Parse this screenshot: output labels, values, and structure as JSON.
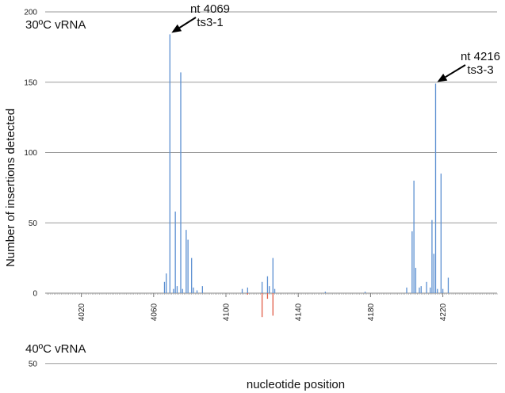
{
  "chart_data": {
    "type": "bar",
    "xlabel": "nucleotide position",
    "ylabel": "Number of insertions detected",
    "x_range": [
      4000,
      4250
    ],
    "x_ticks": [
      4020,
      4060,
      4100,
      4140,
      4180,
      4220
    ],
    "y_ticks_top": [
      0,
      50,
      100,
      150,
      200
    ],
    "y_ticks_bottom": [
      50
    ],
    "ylim_top": [
      0,
      200
    ],
    "ylim_bottom": [
      0,
      50
    ],
    "grid": true,
    "series": [
      {
        "name": "30ºC vRNA",
        "color": "#5b8fd1",
        "direction": "up",
        "points": [
          {
            "x": 4066,
            "y": 8
          },
          {
            "x": 4067,
            "y": 14
          },
          {
            "x": 4069,
            "y": 184
          },
          {
            "x": 4071,
            "y": 3
          },
          {
            "x": 4072,
            "y": 58
          },
          {
            "x": 4073,
            "y": 5
          },
          {
            "x": 4075,
            "y": 157
          },
          {
            "x": 4076,
            "y": 3
          },
          {
            "x": 4078,
            "y": 45
          },
          {
            "x": 4079,
            "y": 38
          },
          {
            "x": 4081,
            "y": 25
          },
          {
            "x": 4082,
            "y": 4
          },
          {
            "x": 4084,
            "y": 2
          },
          {
            "x": 4087,
            "y": 5
          },
          {
            "x": 4109,
            "y": 3
          },
          {
            "x": 4112,
            "y": 4
          },
          {
            "x": 4120,
            "y": 8
          },
          {
            "x": 4123,
            "y": 12
          },
          {
            "x": 4124,
            "y": 5
          },
          {
            "x": 4126,
            "y": 25
          },
          {
            "x": 4127,
            "y": 3
          },
          {
            "x": 4155,
            "y": 1
          },
          {
            "x": 4177,
            "y": 1
          },
          {
            "x": 4200,
            "y": 4
          },
          {
            "x": 4203,
            "y": 44
          },
          {
            "x": 4204,
            "y": 80
          },
          {
            "x": 4205,
            "y": 18
          },
          {
            "x": 4207,
            "y": 4
          },
          {
            "x": 4208,
            "y": 5
          },
          {
            "x": 4211,
            "y": 8
          },
          {
            "x": 4213,
            "y": 4
          },
          {
            "x": 4214,
            "y": 52
          },
          {
            "x": 4215,
            "y": 28
          },
          {
            "x": 4216,
            "y": 149
          },
          {
            "x": 4217,
            "y": 3
          },
          {
            "x": 4219,
            "y": 85
          },
          {
            "x": 4220,
            "y": 3
          },
          {
            "x": 4223,
            "y": 11
          }
        ]
      },
      {
        "name": "40ºC vRNA",
        "color": "#e05b46",
        "direction": "down",
        "points": [
          {
            "x": 4112,
            "y": 1
          },
          {
            "x": 4120,
            "y": 17
          },
          {
            "x": 4123,
            "y": 4
          },
          {
            "x": 4126,
            "y": 16
          }
        ]
      }
    ],
    "annotations": [
      {
        "lines": [
          "nt 4069",
          "ts3-1"
        ],
        "target_x": 4069,
        "target_y": 184
      },
      {
        "lines": [
          "nt 4216",
          "ts3-3"
        ],
        "target_x": 4216,
        "target_y": 149
      }
    ]
  }
}
